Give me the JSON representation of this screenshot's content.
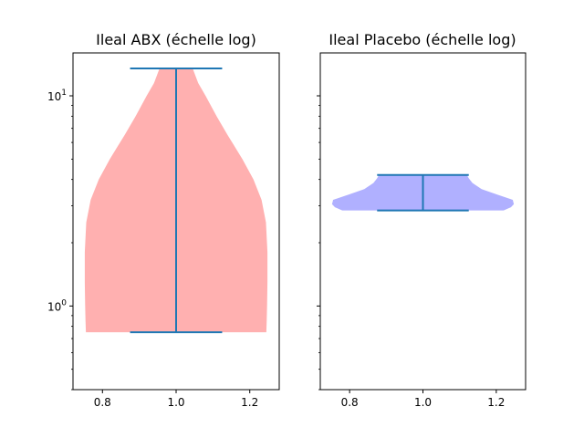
{
  "chart_data": [
    {
      "type": "violin",
      "title": "Ileal ABX (échelle log)",
      "y_scale": "log",
      "ylim": [
        0.4,
        16
      ],
      "xlim": [
        0.72,
        1.28
      ],
      "x_ticks": [
        0.8,
        1.0,
        1.2
      ],
      "x_tick_labels": [
        "0.8",
        "1.0",
        "1.2"
      ],
      "y_major_ticks": [
        1,
        10
      ],
      "y_tick_labels": [
        "10^0",
        "10^1"
      ],
      "position": 1.0,
      "min": 0.75,
      "max": 13.5,
      "fill_color": "#ffb0b0",
      "line_color": "#1f77b4",
      "density_profile": [
        [
          0.75,
          0.245
        ],
        [
          0.85,
          0.246
        ],
        [
          1.0,
          0.247
        ],
        [
          1.3,
          0.248
        ],
        [
          1.8,
          0.248
        ],
        [
          2.5,
          0.244
        ],
        [
          3.2,
          0.232
        ],
        [
          4.0,
          0.21
        ],
        [
          5.0,
          0.18
        ],
        [
          6.5,
          0.14
        ],
        [
          8.0,
          0.11
        ],
        [
          10.0,
          0.08
        ],
        [
          11.5,
          0.06
        ],
        [
          13.5,
          0.045
        ]
      ]
    },
    {
      "type": "violin",
      "title": "Ileal Placebo (échelle log)",
      "y_scale": "log",
      "ylim": [
        0.4,
        16
      ],
      "xlim": [
        0.72,
        1.28
      ],
      "x_ticks": [
        0.8,
        1.0,
        1.2
      ],
      "x_tick_labels": [
        "0.8",
        "1.0",
        "1.2"
      ],
      "y_major_ticks": [
        1,
        10
      ],
      "y_tick_labels": [
        "",
        ""
      ],
      "position": 1.0,
      "min": 2.85,
      "max": 4.2,
      "fill_color": "#b0b0ff",
      "line_color": "#1f77b4",
      "density_profile": [
        [
          2.85,
          0.22
        ],
        [
          2.95,
          0.24
        ],
        [
          3.05,
          0.248
        ],
        [
          3.2,
          0.245
        ],
        [
          3.4,
          0.2
        ],
        [
          3.6,
          0.16
        ],
        [
          3.85,
          0.135
        ],
        [
          4.05,
          0.125
        ],
        [
          4.2,
          0.12
        ]
      ]
    }
  ]
}
